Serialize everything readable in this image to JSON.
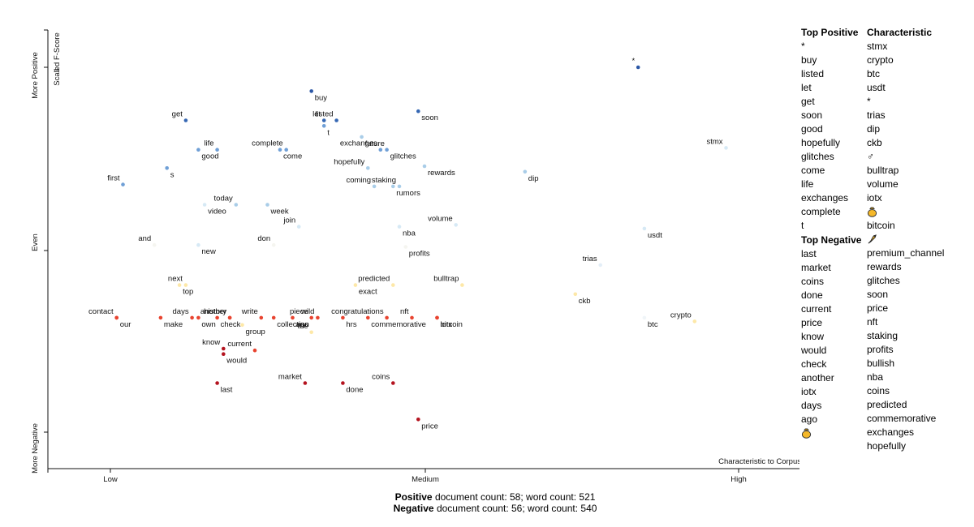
{
  "chart_data": {
    "type": "scatter",
    "title": "",
    "xlabel": "",
    "ylabel": "Scaled F-Score",
    "corner_label": "Characteristic to Corpus",
    "x_ticks": [
      "Low",
      "Medium",
      "High"
    ],
    "y_ticks": [
      "More Positive",
      "Even",
      "More Negative"
    ],
    "y_ticks_numeric": [
      "1"
    ],
    "xlim": [
      0,
      1
    ],
    "ylim": [
      -1,
      1
    ],
    "grid": false,
    "colors": {
      "positive_strong": "#2b57a6",
      "positive": "#6f9fd6",
      "positive_light": "#a9cde8",
      "neutral": "#fde8a8",
      "negative_light": "#f9b67d",
      "negative": "#e8432f",
      "negative_strong": "#b4131f"
    },
    "points": [
      {
        "term": "*",
        "x": 0.84,
        "y": 1.0,
        "color": "#2b57a6"
      },
      {
        "term": "buy",
        "x": 0.32,
        "y": 0.87,
        "color": "#2b57a6"
      },
      {
        "term": "let",
        "x": 0.34,
        "y": 0.71,
        "color": "#3567b3"
      },
      {
        "term": "t",
        "x": 0.34,
        "y": 0.68,
        "color": "#6f9fd6"
      },
      {
        "term": "listed",
        "x": 0.36,
        "y": 0.71,
        "color": "#3567b3"
      },
      {
        "term": "soon",
        "x": 0.49,
        "y": 0.76,
        "color": "#3567b3"
      },
      {
        "term": "get",
        "x": 0.12,
        "y": 0.71,
        "color": "#3567b3"
      },
      {
        "term": "good",
        "x": 0.14,
        "y": 0.55,
        "color": "#6f9fd6"
      },
      {
        "term": "life",
        "x": 0.17,
        "y": 0.55,
        "color": "#6f9fd6"
      },
      {
        "term": "come",
        "x": 0.27,
        "y": 0.55,
        "color": "#6f9fd6"
      },
      {
        "term": "complete",
        "x": 0.28,
        "y": 0.55,
        "color": "#6f9fd6"
      },
      {
        "term": "future",
        "x": 0.4,
        "y": 0.62,
        "color": "#a9cde8"
      },
      {
        "term": "exchanges",
        "x": 0.43,
        "y": 0.55,
        "color": "#6f9fd6"
      },
      {
        "term": "glitches",
        "x": 0.44,
        "y": 0.55,
        "color": "#6f9fd6"
      },
      {
        "term": "hopefully",
        "x": 0.41,
        "y": 0.45,
        "color": "#a9cde8"
      },
      {
        "term": "rewards",
        "x": 0.5,
        "y": 0.46,
        "color": "#a9cde8"
      },
      {
        "term": "coming",
        "x": 0.42,
        "y": 0.35,
        "color": "#a9cde8"
      },
      {
        "term": "rumors",
        "x": 0.45,
        "y": 0.35,
        "color": "#a9cde8"
      },
      {
        "term": "staking",
        "x": 0.46,
        "y": 0.35,
        "color": "#a9cde8"
      },
      {
        "term": "s",
        "x": 0.09,
        "y": 0.45,
        "color": "#6f9fd6"
      },
      {
        "term": "first",
        "x": 0.02,
        "y": 0.36,
        "color": "#6f9fd6"
      },
      {
        "term": "video",
        "x": 0.15,
        "y": 0.25,
        "color": "#d6e9f5"
      },
      {
        "term": "today",
        "x": 0.2,
        "y": 0.25,
        "color": "#a9cde8"
      },
      {
        "term": "week",
        "x": 0.25,
        "y": 0.25,
        "color": "#a9cde8"
      },
      {
        "term": "join",
        "x": 0.3,
        "y": 0.13,
        "color": "#d6e9f5"
      },
      {
        "term": "nba",
        "x": 0.46,
        "y": 0.13,
        "color": "#d6e9f5"
      },
      {
        "term": "volume",
        "x": 0.55,
        "y": 0.14,
        "color": "#d6e9f5"
      },
      {
        "term": "profits",
        "x": 0.47,
        "y": 0.02,
        "color": "#f5f5f0"
      },
      {
        "term": "and",
        "x": 0.07,
        "y": 0.03,
        "color": "#f5f5f0"
      },
      {
        "term": "new",
        "x": 0.14,
        "y": 0.03,
        "color": "#d6e9f5"
      },
      {
        "term": "don",
        "x": 0.26,
        "y": 0.03,
        "color": "#f5f5f0"
      },
      {
        "term": "dip",
        "x": 0.66,
        "y": 0.43,
        "color": "#a9cde8"
      },
      {
        "term": "stmx",
        "x": 0.98,
        "y": 0.56,
        "color": "#d6e9f5"
      },
      {
        "term": "usdt",
        "x": 0.85,
        "y": 0.12,
        "color": "#d6e9f5"
      },
      {
        "term": "trias",
        "x": 0.78,
        "y": -0.08,
        "color": "#e3eef7"
      },
      {
        "term": "btc",
        "x": 0.85,
        "y": -0.37,
        "color": "#f0f5f8"
      },
      {
        "term": "crypto",
        "x": 0.93,
        "y": -0.39,
        "color": "#fde8a8"
      },
      {
        "term": "ckb",
        "x": 0.74,
        "y": -0.24,
        "color": "#fde8a8"
      },
      {
        "term": "bulltrap",
        "x": 0.56,
        "y": -0.19,
        "color": "#fde8a8"
      },
      {
        "term": "exact",
        "x": 0.39,
        "y": -0.19,
        "color": "#fde8a8"
      },
      {
        "term": "predicted",
        "x": 0.45,
        "y": -0.19,
        "color": "#fde8a8"
      },
      {
        "term": "top",
        "x": 0.11,
        "y": -0.19,
        "color": "#fde8a8"
      },
      {
        "term": "next",
        "x": 0.12,
        "y": -0.19,
        "color": "#fde8a8"
      },
      {
        "term": "our",
        "x": 0.01,
        "y": -0.37,
        "color": "#e8432f"
      },
      {
        "term": "contact",
        "x": 0.01,
        "y": -0.37,
        "color": "#e8432f"
      },
      {
        "term": "make",
        "x": 0.08,
        "y": -0.37,
        "color": "#e8432f"
      },
      {
        "term": "days",
        "x": 0.13,
        "y": -0.37,
        "color": "#e8432f"
      },
      {
        "term": "own",
        "x": 0.14,
        "y": -0.37,
        "color": "#e8432f"
      },
      {
        "term": "another",
        "x": 0.19,
        "y": -0.37,
        "color": "#e8432f"
      },
      {
        "term": "check",
        "x": 0.17,
        "y": -0.37,
        "color": "#e8432f"
      },
      {
        "term": "history",
        "x": 0.19,
        "y": -0.37,
        "color": "#e8432f"
      },
      {
        "term": "collection",
        "x": 0.26,
        "y": -0.37,
        "color": "#e8432f"
      },
      {
        "term": "write",
        "x": 0.24,
        "y": -0.37,
        "color": "#e8432f"
      },
      {
        "term": "group",
        "x": 0.21,
        "y": -0.41,
        "color": "#fde8a8"
      },
      {
        "term": "wild",
        "x": 0.33,
        "y": -0.37,
        "color": "#e8432f"
      },
      {
        "term": "ago",
        "x": 0.29,
        "y": -0.37,
        "color": "#e8432f"
      },
      {
        "term": "piece",
        "x": 0.32,
        "y": -0.37,
        "color": "#e8432f"
      },
      {
        "term": "hrs",
        "x": 0.37,
        "y": -0.37,
        "color": "#e8432f"
      },
      {
        "term": "the",
        "x": 0.32,
        "y": -0.45,
        "color": "#fde8a8"
      },
      {
        "term": "commemorative",
        "x": 0.41,
        "y": -0.37,
        "color": "#e8432f"
      },
      {
        "term": "congratulations",
        "x": 0.44,
        "y": -0.37,
        "color": "#e8432f"
      },
      {
        "term": "bitcoin",
        "x": 0.52,
        "y": -0.37,
        "color": "#e8432f"
      },
      {
        "term": "nft",
        "x": 0.48,
        "y": -0.37,
        "color": "#e8432f"
      },
      {
        "term": "iotx",
        "x": 0.52,
        "y": -0.37,
        "color": "#e8432f"
      },
      {
        "term": "know",
        "x": 0.18,
        "y": -0.54,
        "color": "#b4131f"
      },
      {
        "term": "would",
        "x": 0.18,
        "y": -0.57,
        "color": "#b4131f"
      },
      {
        "term": "current",
        "x": 0.23,
        "y": -0.55,
        "color": "#e8432f"
      },
      {
        "term": "last",
        "x": 0.17,
        "y": -0.73,
        "color": "#b4131f"
      },
      {
        "term": "market",
        "x": 0.31,
        "y": -0.73,
        "color": "#b4131f"
      },
      {
        "term": "done",
        "x": 0.37,
        "y": -0.73,
        "color": "#b4131f"
      },
      {
        "term": "coins",
        "x": 0.45,
        "y": -0.73,
        "color": "#b4131f"
      },
      {
        "term": "price",
        "x": 0.49,
        "y": -0.93,
        "color": "#b4131f"
      }
    ]
  },
  "top_positive": {
    "heading": "Top Positive",
    "items": [
      "*",
      "buy",
      "listed",
      "let",
      "get",
      "soon",
      "good",
      "hopefully",
      "glitches",
      "come",
      "life",
      "exchanges",
      "complete",
      "t"
    ]
  },
  "top_negative": {
    "heading": "Top Negative",
    "items": [
      "last",
      "market",
      "coins",
      "done",
      "current",
      "price",
      "know",
      "would",
      "check",
      "another",
      "iotx",
      "days",
      "ago",
      "[money-bag-icon]"
    ]
  },
  "characteristic": {
    "heading": "Characteristic",
    "items": [
      "stmx",
      "crypto",
      "btc",
      "usdt",
      "*",
      "trias",
      "dip",
      "ckb",
      "♂",
      "bulltrap",
      "volume",
      "iotx",
      "[money-bag-icon]",
      "bitcoin",
      "[rocket-icon]",
      "premium_channel",
      "rewards",
      "glitches",
      "soon",
      "price",
      "nft",
      "staking",
      "profits",
      "bullish",
      "nba",
      "coins",
      "predicted",
      "commemorative",
      "exchanges",
      "hopefully"
    ]
  },
  "counts": {
    "positive_label": "Positive",
    "positive_text": "document count: 58; word count: 521",
    "negative_label": "Negative",
    "negative_text": "document count: 56; word count: 540"
  }
}
